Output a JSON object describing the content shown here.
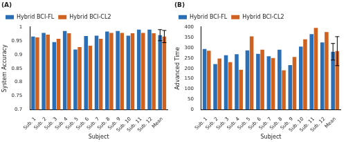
{
  "chart_data": [
    {
      "type": "bar",
      "title": "(A)",
      "x_label": "Subject",
      "y_label": "System Accuracy",
      "categories": [
        "Sub. 1",
        "Sub. 2",
        "Sub. 3",
        "Sub. 4",
        "Sub. 5",
        "Sub. 6",
        "Sub. 7",
        "Sub. 8",
        "Sub. 9",
        "Sub. 10",
        "Sub. 11",
        "Sub. 12",
        "Mean"
      ],
      "series": [
        {
          "name": "Hybrid BCI-FL",
          "color": "#2a6fb5",
          "values": [
            0.965,
            0.978,
            0.945,
            0.985,
            0.918,
            0.967,
            0.968,
            0.983,
            0.985,
            0.968,
            0.99,
            0.99,
            0.97
          ],
          "errors": [
            null,
            null,
            null,
            null,
            null,
            null,
            null,
            null,
            null,
            null,
            null,
            null,
            0.02
          ]
        },
        {
          "name": "Hybrid BCI-CL2",
          "color": "#d0621f",
          "values": [
            0.962,
            0.972,
            0.957,
            0.977,
            0.927,
            0.932,
            0.957,
            0.978,
            0.978,
            0.977,
            0.978,
            0.977,
            0.965
          ],
          "errors": [
            null,
            null,
            null,
            null,
            null,
            null,
            null,
            null,
            null,
            null,
            null,
            null,
            0.022
          ]
        }
      ],
      "ylim": [
        0.7,
        1
      ],
      "yticks": [
        0.7,
        0.75,
        0.8,
        0.85,
        0.9,
        0.95,
        1
      ],
      "grid": false,
      "legend": "top-left"
    },
    {
      "type": "bar",
      "title": "(B)",
      "x_label": "Subject",
      "y_label": "Advanced Time",
      "categories": [
        "Sub. 1",
        "Sub. 2",
        "Sub. 3",
        "Sub. 4",
        "Sub. 5",
        "Sub. 6",
        "Sub. 7",
        "Sub. 8",
        "Sub. 9",
        "Sub. 10",
        "Sub. 11",
        "Sub. 12",
        "Mean"
      ],
      "series": [
        {
          "name": "Hybrid BCI-FL",
          "color": "#2a6fb5",
          "values": [
            293,
            221,
            263,
            268,
            287,
            270,
            258,
            290,
            216,
            305,
            365,
            325,
            280
          ],
          "errors": [
            null,
            null,
            null,
            null,
            null,
            null,
            null,
            null,
            null,
            null,
            null,
            null,
            40
          ]
        },
        {
          "name": "Hybrid BCI-CL2",
          "color": "#d0621f",
          "values": [
            285,
            247,
            230,
            193,
            354,
            290,
            250,
            191,
            255,
            340,
            395,
            375,
            283
          ],
          "errors": [
            null,
            null,
            null,
            null,
            null,
            null,
            null,
            null,
            null,
            null,
            null,
            null,
            70
          ]
        }
      ],
      "ylim": [
        0,
        400
      ],
      "yticks": [
        0,
        50,
        100,
        150,
        200,
        250,
        300,
        350,
        400
      ],
      "grid": false,
      "legend": "top-left"
    }
  ]
}
